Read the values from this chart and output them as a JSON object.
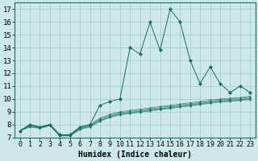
{
  "xlabel": "Humidex (Indice chaleur)",
  "xlim": [
    -0.5,
    23.5
  ],
  "ylim": [
    7,
    17.5
  ],
  "yticks": [
    7,
    8,
    9,
    10,
    11,
    12,
    13,
    14,
    15,
    16,
    17
  ],
  "xticks": [
    0,
    1,
    2,
    3,
    4,
    5,
    6,
    7,
    8,
    9,
    10,
    11,
    12,
    13,
    14,
    15,
    16,
    17,
    18,
    19,
    20,
    21,
    22,
    23
  ],
  "bg_color": "#cde8e8",
  "grid_color": "#a0c8c8",
  "line_color": "#1a6b5a",
  "main_y": [
    7.5,
    8.0,
    7.8,
    8.0,
    7.2,
    7.2,
    7.8,
    8.0,
    9.5,
    9.8,
    10.0,
    14.0,
    13.5,
    16.0,
    13.8,
    17.0,
    16.0,
    13.0,
    11.2,
    12.5,
    11.2,
    10.5,
    11.0,
    10.5
  ],
  "bundle_lines": [
    [
      7.5,
      7.9,
      7.75,
      7.95,
      7.15,
      7.15,
      7.7,
      7.9,
      8.3,
      8.6,
      8.8,
      8.9,
      9.0,
      9.1,
      9.2,
      9.3,
      9.4,
      9.5,
      9.6,
      9.7,
      9.8,
      9.85,
      9.9,
      10.0
    ],
    [
      7.5,
      7.85,
      7.72,
      7.92,
      7.12,
      7.12,
      7.65,
      7.85,
      8.35,
      8.65,
      8.85,
      8.95,
      9.05,
      9.15,
      9.25,
      9.35,
      9.45,
      9.55,
      9.65,
      9.75,
      9.85,
      9.9,
      9.97,
      10.05
    ],
    [
      7.5,
      7.8,
      7.7,
      7.9,
      7.1,
      7.1,
      7.6,
      7.8,
      8.25,
      8.55,
      8.75,
      8.85,
      8.95,
      9.05,
      9.15,
      9.25,
      9.35,
      9.45,
      9.55,
      9.65,
      9.75,
      9.8,
      9.87,
      9.95
    ],
    [
      7.5,
      7.95,
      7.78,
      7.97,
      7.17,
      7.17,
      7.72,
      7.92,
      8.42,
      8.72,
      8.92,
      9.02,
      9.12,
      9.22,
      9.32,
      9.42,
      9.52,
      9.62,
      9.72,
      9.82,
      9.92,
      9.97,
      10.07,
      10.12
    ],
    [
      7.5,
      8.0,
      7.8,
      8.0,
      7.2,
      7.2,
      7.8,
      8.0,
      8.5,
      8.8,
      9.0,
      9.1,
      9.2,
      9.3,
      9.4,
      9.5,
      9.6,
      9.7,
      9.8,
      9.9,
      10.0,
      10.05,
      10.1,
      10.2
    ]
  ],
  "marker_size": 2.5,
  "linewidth": 0.7,
  "font_size": 6.5
}
